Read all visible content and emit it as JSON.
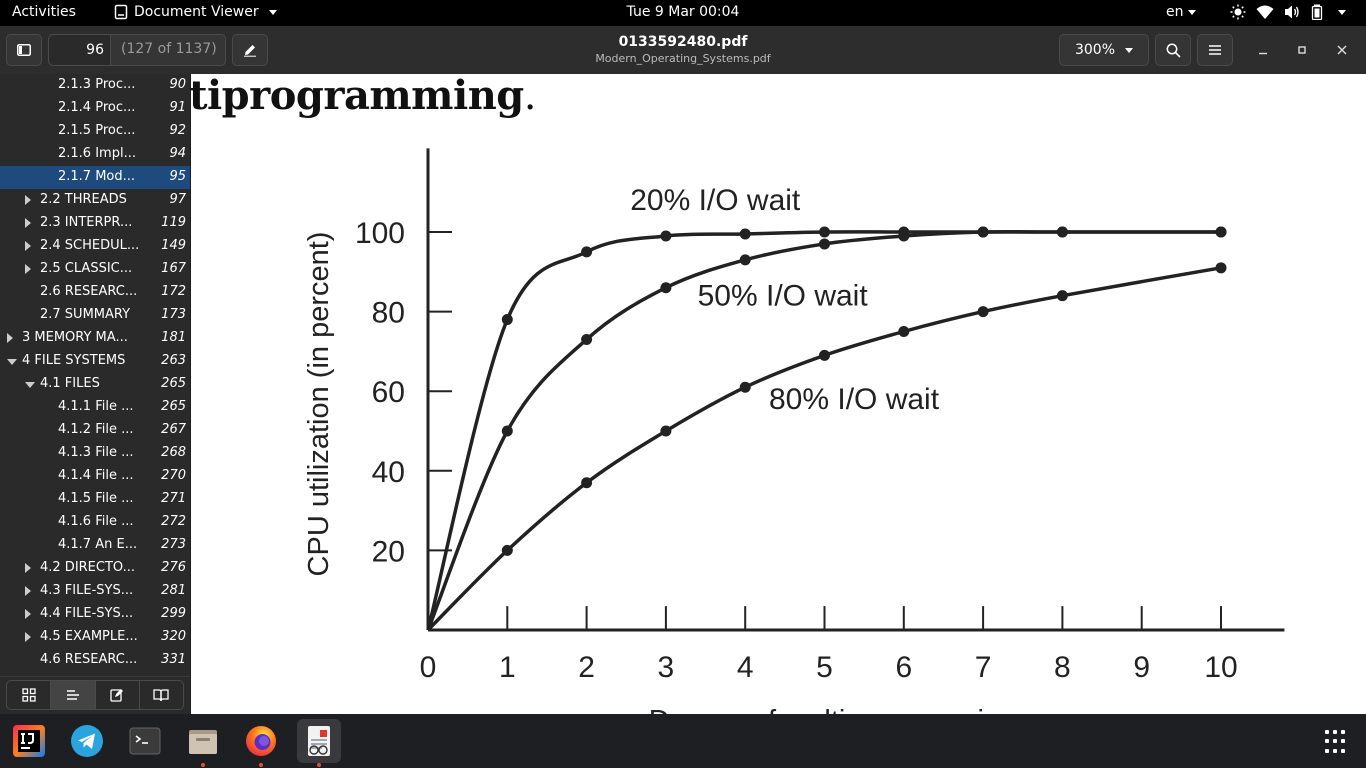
{
  "topbar": {
    "activities": "Activities",
    "app_name": "Document Viewer",
    "clock": "Tue 9 Mar  00:04",
    "language": "en"
  },
  "header": {
    "page_value": "96",
    "page_count": "(127 of 1137)",
    "title": "0133592480.pdf",
    "subtitle": "Modern_Operating_Systems.pdf",
    "zoom": "300%"
  },
  "toc": [
    {
      "label": "2.1.3 Proc...",
      "page": "90",
      "level": 3,
      "arrow": "none",
      "selected": false
    },
    {
      "label": "2.1.4 Proc...",
      "page": "91",
      "level": 3,
      "arrow": "none",
      "selected": false
    },
    {
      "label": "2.1.5 Proc...",
      "page": "92",
      "level": 3,
      "arrow": "none",
      "selected": false
    },
    {
      "label": "2.1.6 Impl...",
      "page": "94",
      "level": 3,
      "arrow": "none",
      "selected": false
    },
    {
      "label": "2.1.7 Mod...",
      "page": "95",
      "level": 3,
      "arrow": "none",
      "selected": true
    },
    {
      "label": "2.2 THREADS",
      "page": "97",
      "level": 2,
      "arrow": "right",
      "selected": false
    },
    {
      "label": "2.3 INTERPR...",
      "page": "119",
      "level": 2,
      "arrow": "right",
      "selected": false
    },
    {
      "label": "2.4 SCHEDUL...",
      "page": "149",
      "level": 2,
      "arrow": "right",
      "selected": false
    },
    {
      "label": "2.5 CLASSIC...",
      "page": "167",
      "level": 2,
      "arrow": "right",
      "selected": false
    },
    {
      "label": "2.6 RESEARC...",
      "page": "172",
      "level": 2,
      "arrow": "none",
      "selected": false
    },
    {
      "label": "2.7 SUMMARY",
      "page": "173",
      "level": 2,
      "arrow": "none",
      "selected": false
    },
    {
      "label": "3 MEMORY MA...",
      "page": "181",
      "level": 1,
      "arrow": "right",
      "selected": false
    },
    {
      "label": "4 FILE SYSTEMS",
      "page": "263",
      "level": 1,
      "arrow": "down",
      "selected": false
    },
    {
      "label": "4.1 FILES",
      "page": "265",
      "level": 2,
      "arrow": "down",
      "selected": false
    },
    {
      "label": "4.1.1 File ...",
      "page": "265",
      "level": 3,
      "arrow": "none",
      "selected": false
    },
    {
      "label": "4.1.2 File ...",
      "page": "267",
      "level": 3,
      "arrow": "none",
      "selected": false
    },
    {
      "label": "4.1.3 File ...",
      "page": "268",
      "level": 3,
      "arrow": "none",
      "selected": false
    },
    {
      "label": "4.1.4 File ...",
      "page": "270",
      "level": 3,
      "arrow": "none",
      "selected": false
    },
    {
      "label": "4.1.5 File ...",
      "page": "271",
      "level": 3,
      "arrow": "none",
      "selected": false
    },
    {
      "label": "4.1.6 File ...",
      "page": "272",
      "level": 3,
      "arrow": "none",
      "selected": false
    },
    {
      "label": "4.1.7 An E...",
      "page": "273",
      "level": 3,
      "arrow": "none",
      "selected": false
    },
    {
      "label": "4.2 DIRECTO...",
      "page": "276",
      "level": 2,
      "arrow": "right",
      "selected": false
    },
    {
      "label": "4.3 FILE-SYS...",
      "page": "281",
      "level": 2,
      "arrow": "right",
      "selected": false
    },
    {
      "label": "4.4 FILE-SYS...",
      "page": "299",
      "level": 2,
      "arrow": "right",
      "selected": false
    },
    {
      "label": "4.5 EXAMPLE...",
      "page": "320",
      "level": 2,
      "arrow": "right",
      "selected": false
    },
    {
      "label": "4.6 RESEARC...",
      "page": "331",
      "level": 2,
      "arrow": "none",
      "selected": false
    }
  ],
  "document": {
    "heading_visible": "tiprogramming",
    "heading_dot": "."
  },
  "chart_data": {
    "type": "line",
    "title": "",
    "xlabel": "Degree of multiprogramming",
    "ylabel": "CPU utilization (in percent)",
    "xlim": [
      0,
      10
    ],
    "ylim": [
      0,
      100
    ],
    "xticks": [
      "0",
      "1",
      "2",
      "3",
      "4",
      "5",
      "6",
      "7",
      "8",
      "9",
      "10"
    ],
    "yticks": [
      "20",
      "40",
      "60",
      "80",
      "100"
    ],
    "series": [
      {
        "name": "20% I/O wait",
        "x": [
          1,
          2,
          3,
          4,
          5,
          6,
          7,
          8,
          10
        ],
        "values": [
          78,
          95,
          99,
          99.5,
          100,
          100,
          100,
          100,
          100
        ]
      },
      {
        "name": "50% I/O wait",
        "x": [
          1,
          2,
          3,
          4,
          5,
          6,
          7,
          8,
          10
        ],
        "values": [
          50,
          73,
          86,
          93,
          97,
          99,
          100,
          100,
          100
        ]
      },
      {
        "name": "80% I/O wait",
        "x": [
          1,
          2,
          3,
          4,
          5,
          6,
          7,
          8,
          10
        ],
        "values": [
          20,
          37,
          50,
          61,
          69,
          75,
          80,
          84,
          91
        ]
      }
    ]
  },
  "dock": [
    {
      "name": "intellij-icon",
      "running": false,
      "active": false
    },
    {
      "name": "telegram-icon",
      "running": false,
      "active": false
    },
    {
      "name": "terminal-icon",
      "running": false,
      "active": false
    },
    {
      "name": "files-icon",
      "running": true,
      "active": false
    },
    {
      "name": "firefox-icon",
      "running": true,
      "active": false
    },
    {
      "name": "document-viewer-icon",
      "running": true,
      "active": true
    }
  ]
}
